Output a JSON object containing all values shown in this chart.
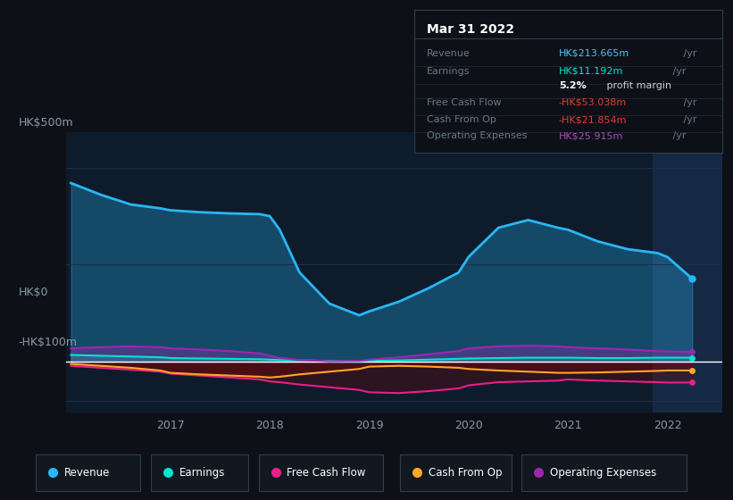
{
  "background_color": "#0d1117",
  "chart_area_color": "#0d1b2b",
  "title": "Mar 31 2022",
  "info_box_rows": [
    {
      "label": "Revenue",
      "value": "HK$213.665m",
      "unit": " /yr",
      "value_color": "#4fc3f7"
    },
    {
      "label": "Earnings",
      "value": "HK$11.192m",
      "unit": " /yr",
      "value_color": "#00e5cc"
    },
    {
      "label": "",
      "value": "5.2%",
      "unit": " profit margin",
      "value_color": "#ffffff",
      "bold": true
    },
    {
      "label": "Free Cash Flow",
      "value": "-HK$53.038m",
      "unit": " /yr",
      "value_color": "#e53935"
    },
    {
      "label": "Cash From Op",
      "value": "-HK$21.854m",
      "unit": " /yr",
      "value_color": "#e53935"
    },
    {
      "label": "Operating Expenses",
      "value": "HK$25.915m",
      "unit": " /yr",
      "value_color": "#ab47bc"
    }
  ],
  "xtick_years": [
    2017,
    2018,
    2019,
    2020,
    2021,
    2022
  ],
  "x_values": [
    2016.0,
    2016.3,
    2016.6,
    2016.9,
    2017.0,
    2017.3,
    2017.6,
    2017.9,
    2018.0,
    2018.1,
    2018.3,
    2018.6,
    2018.9,
    2019.0,
    2019.3,
    2019.6,
    2019.9,
    2020.0,
    2020.3,
    2020.6,
    2020.9,
    2021.0,
    2021.3,
    2021.6,
    2021.9,
    2022.0,
    2022.25
  ],
  "revenue": [
    460,
    430,
    405,
    395,
    390,
    385,
    382,
    380,
    375,
    340,
    230,
    150,
    120,
    130,
    155,
    190,
    230,
    270,
    345,
    365,
    345,
    340,
    310,
    290,
    280,
    270,
    214
  ],
  "earnings": [
    18,
    16,
    14,
    12,
    10,
    9,
    8,
    7,
    6,
    5,
    4,
    3,
    2,
    3,
    4,
    6,
    8,
    9,
    10,
    11,
    11,
    11,
    10,
    10,
    11,
    11,
    11
  ],
  "free_cash_flow": [
    -10,
    -15,
    -20,
    -25,
    -30,
    -35,
    -40,
    -45,
    -50,
    -52,
    -58,
    -65,
    -72,
    -78,
    -80,
    -75,
    -68,
    -60,
    -52,
    -50,
    -48,
    -45,
    -48,
    -50,
    -52,
    -53,
    -53
  ],
  "cash_from_op": [
    -5,
    -10,
    -15,
    -22,
    -28,
    -32,
    -35,
    -38,
    -40,
    -38,
    -32,
    -25,
    -18,
    -12,
    -10,
    -12,
    -15,
    -18,
    -22,
    -25,
    -28,
    -28,
    -27,
    -25,
    -23,
    -22,
    -22
  ],
  "operating_expenses": [
    35,
    38,
    40,
    38,
    35,
    32,
    28,
    22,
    16,
    10,
    5,
    2,
    3,
    6,
    12,
    20,
    28,
    35,
    40,
    42,
    40,
    38,
    35,
    32,
    28,
    27,
    26
  ],
  "revenue_color": "#29b6f6",
  "earnings_color": "#00e5cc",
  "free_cash_flow_color": "#e91e8c",
  "cash_from_op_color": "#ffa726",
  "operating_expenses_color": "#9c27b0",
  "highlight_x_start": 2021.85,
  "ylim_min": -130,
  "ylim_max": 590,
  "legend_items": [
    {
      "label": "Revenue",
      "color": "#29b6f6"
    },
    {
      "label": "Earnings",
      "color": "#00e5cc"
    },
    {
      "label": "Free Cash Flow",
      "color": "#e91e8c"
    },
    {
      "label": "Cash From Op",
      "color": "#ffa726"
    },
    {
      "label": "Operating Expenses",
      "color": "#9c27b0"
    }
  ]
}
